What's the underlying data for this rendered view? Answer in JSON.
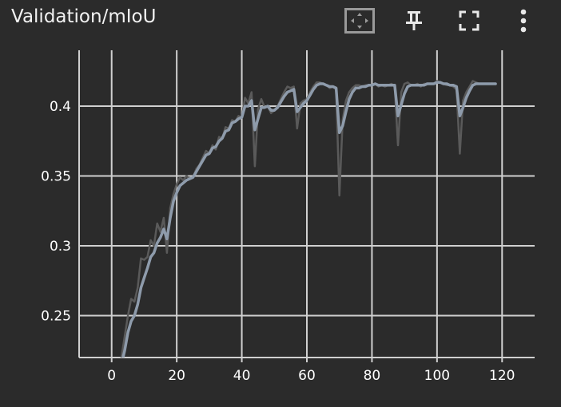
{
  "card": {
    "title": "Validation/mIoU"
  },
  "toolbar": {
    "fit_icon": "fit-domain-icon",
    "pin_icon": "pin-icon",
    "fullscreen_icon": "fullscreen-icon",
    "more_icon": "more-vert-icon"
  },
  "colors": {
    "background": "#2b2b2b",
    "grid": "#d0d0d0",
    "raw_line": "#5a5a5a",
    "smoothed_line": "#8e9bab",
    "text": "#ffffff"
  },
  "chart_data": {
    "type": "line",
    "title": "Validation/mIoU",
    "xlabel": "",
    "ylabel": "",
    "xlim": [
      -10,
      130
    ],
    "ylim": [
      0.22,
      0.44
    ],
    "x_ticks": [
      0,
      20,
      40,
      60,
      80,
      100,
      120
    ],
    "x_tick_labels": [
      "0",
      "20",
      "40",
      "60",
      "80",
      "100",
      "120"
    ],
    "y_ticks": [
      0.25,
      0.3,
      0.35,
      0.4
    ],
    "y_tick_labels": [
      "0.25",
      "0.3",
      "0.35",
      "0.4"
    ],
    "grid": true,
    "series": [
      {
        "role": "raw",
        "x": [
          3,
          4,
          5,
          6,
          7,
          8,
          9,
          10,
          11,
          12,
          13,
          14,
          15,
          16,
          17,
          18,
          19,
          20,
          21,
          22,
          23,
          24,
          25,
          26,
          27,
          28,
          29,
          30,
          31,
          32,
          33,
          34,
          35,
          36,
          37,
          38,
          39,
          40,
          41,
          42,
          43,
          44,
          45,
          46,
          47,
          48,
          49,
          50,
          51,
          52,
          53,
          54,
          55,
          56,
          57,
          58,
          59,
          60,
          61,
          62,
          63,
          64,
          65,
          66,
          67,
          68,
          69,
          70,
          71,
          72,
          73,
          74,
          75,
          76,
          77,
          78,
          79,
          80,
          81,
          82,
          83,
          84,
          85,
          86,
          87,
          88,
          89,
          90,
          91,
          92,
          93,
          94,
          95,
          96,
          97,
          98,
          99,
          100,
          101,
          102,
          103,
          104,
          105,
          106,
          107,
          108,
          109,
          110,
          111,
          112,
          113,
          114,
          115,
          116,
          117,
          118
        ],
        "y": [
          0.22,
          0.235,
          0.25,
          0.262,
          0.26,
          0.27,
          0.291,
          0.29,
          0.292,
          0.304,
          0.3,
          0.316,
          0.31,
          0.32,
          0.295,
          0.327,
          0.337,
          0.344,
          0.349,
          0.347,
          0.35,
          0.348,
          0.349,
          0.355,
          0.358,
          0.363,
          0.368,
          0.366,
          0.372,
          0.369,
          0.378,
          0.377,
          0.385,
          0.384,
          0.39,
          0.389,
          0.393,
          0.392,
          0.406,
          0.402,
          0.41,
          0.357,
          0.398,
          0.405,
          0.399,
          0.4,
          0.395,
          0.397,
          0.4,
          0.405,
          0.41,
          0.414,
          0.413,
          0.414,
          0.384,
          0.402,
          0.404,
          0.405,
          0.41,
          0.414,
          0.417,
          0.417,
          0.416,
          0.415,
          0.413,
          0.414,
          0.412,
          0.336,
          0.39,
          0.404,
          0.41,
          0.413,
          0.415,
          0.415,
          0.414,
          0.415,
          0.415,
          0.415,
          0.416,
          0.414,
          0.415,
          0.414,
          0.415,
          0.416,
          0.414,
          0.372,
          0.41,
          0.416,
          0.417,
          0.415,
          0.415,
          0.416,
          0.414,
          0.416,
          0.416,
          0.416,
          0.416,
          0.418,
          0.417,
          0.416,
          0.415,
          0.415,
          0.414,
          0.412,
          0.366,
          0.404,
          0.41,
          0.414,
          0.418,
          0.417,
          0.416,
          0.416,
          0.416,
          0.416,
          0.416,
          0.416
        ]
      },
      {
        "role": "smoothed",
        "x": [
          3,
          4,
          5,
          6,
          7,
          8,
          9,
          10,
          11,
          12,
          13,
          14,
          15,
          16,
          17,
          18,
          19,
          20,
          21,
          22,
          23,
          24,
          25,
          26,
          27,
          28,
          29,
          30,
          31,
          32,
          33,
          34,
          35,
          36,
          37,
          38,
          39,
          40,
          41,
          42,
          43,
          44,
          45,
          46,
          47,
          48,
          49,
          50,
          51,
          52,
          53,
          54,
          55,
          56,
          57,
          58,
          59,
          60,
          61,
          62,
          63,
          64,
          65,
          66,
          67,
          68,
          69,
          70,
          71,
          72,
          73,
          74,
          75,
          76,
          77,
          78,
          79,
          80,
          81,
          82,
          83,
          84,
          85,
          86,
          87,
          88,
          89,
          90,
          91,
          92,
          93,
          94,
          95,
          96,
          97,
          98,
          99,
          100,
          101,
          102,
          103,
          104,
          105,
          106,
          107,
          108,
          109,
          110,
          111,
          112,
          113,
          114,
          115,
          116,
          117,
          118
        ],
        "y": [
          0.215,
          0.225,
          0.238,
          0.246,
          0.25,
          0.258,
          0.27,
          0.277,
          0.284,
          0.292,
          0.295,
          0.302,
          0.306,
          0.312,
          0.305,
          0.32,
          0.332,
          0.338,
          0.343,
          0.345,
          0.347,
          0.348,
          0.349,
          0.353,
          0.357,
          0.361,
          0.365,
          0.366,
          0.37,
          0.371,
          0.375,
          0.377,
          0.382,
          0.383,
          0.388,
          0.389,
          0.391,
          0.392,
          0.4,
          0.4,
          0.404,
          0.383,
          0.391,
          0.399,
          0.399,
          0.4,
          0.397,
          0.397,
          0.399,
          0.403,
          0.407,
          0.41,
          0.411,
          0.412,
          0.396,
          0.399,
          0.402,
          0.404,
          0.408,
          0.412,
          0.415,
          0.416,
          0.416,
          0.415,
          0.414,
          0.414,
          0.413,
          0.381,
          0.386,
          0.396,
          0.405,
          0.41,
          0.413,
          0.413,
          0.414,
          0.414,
          0.415,
          0.415,
          0.416,
          0.415,
          0.415,
          0.415,
          0.415,
          0.415,
          0.415,
          0.393,
          0.401,
          0.409,
          0.414,
          0.415,
          0.415,
          0.415,
          0.415,
          0.415,
          0.416,
          0.416,
          0.416,
          0.417,
          0.417,
          0.416,
          0.416,
          0.415,
          0.415,
          0.414,
          0.393,
          0.399,
          0.406,
          0.411,
          0.415,
          0.416,
          0.416,
          0.416,
          0.416,
          0.416,
          0.416,
          0.416
        ]
      }
    ]
  }
}
